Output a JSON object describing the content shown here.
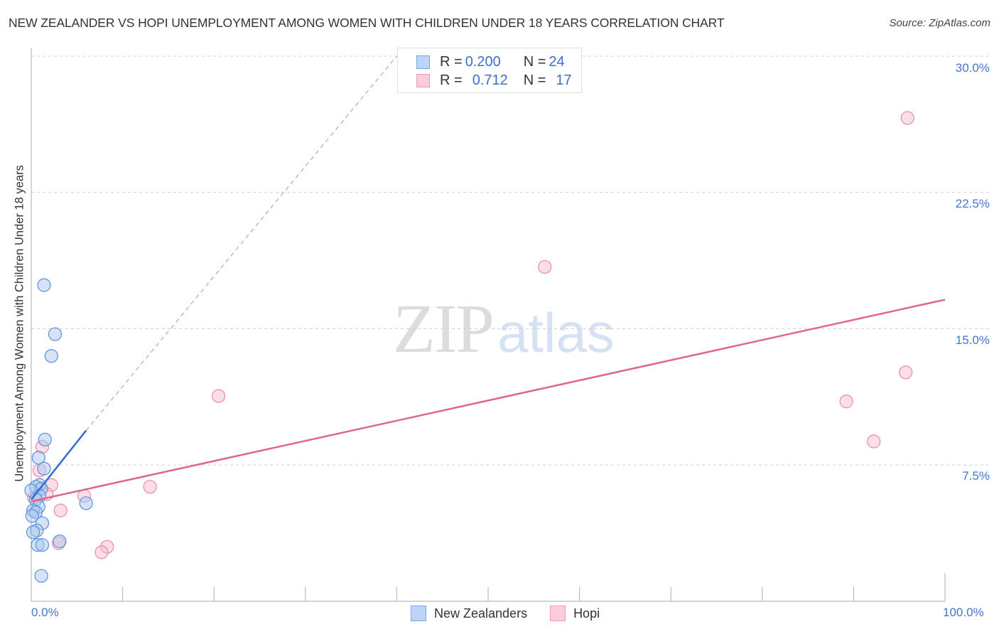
{
  "header": {
    "title": "NEW ZEALANDER VS HOPI UNEMPLOYMENT AMONG WOMEN WITH CHILDREN UNDER 18 YEARS CORRELATION CHART",
    "source": "Source: ZipAtlas.com"
  },
  "watermark": {
    "zip": "ZIP",
    "atlas": "atlas"
  },
  "axes": {
    "ylabel": "Unemployment Among Women with Children Under 18 years",
    "yticks": [
      "30.0%",
      "22.5%",
      "15.0%",
      "7.5%"
    ],
    "xticks": [
      "0.0%",
      "100.0%"
    ]
  },
  "stats_legend": {
    "rows": [
      {
        "r_label": "R = ",
        "r_value": "0.200",
        "n_label": "N = ",
        "n_value": "24",
        "color": "#a9c8f0"
      },
      {
        "r_label": "R = ",
        "r_value": "0.712",
        "n_label": "N = ",
        "n_value": "17",
        "color": "#f7b9cb"
      }
    ]
  },
  "series_legend": [
    {
      "label": "New Zealanders",
      "color": "#a9c8f0"
    },
    {
      "label": "Hopi",
      "color": "#f7b9cb"
    }
  ],
  "colors": {
    "blue_fill": "#a9c8f0",
    "blue_stroke": "#5b8fdb",
    "blue_line": "#2f6fcf",
    "pink_fill": "#f7bdcf",
    "pink_stroke": "#e98aa8",
    "pink_line": "#e06590",
    "grid": "#d0d0d0",
    "axis": "#bbbbbb",
    "tick_label": "#4477cc"
  },
  "chart_data": {
    "type": "scatter",
    "title": "NEW ZEALANDER VS HOPI UNEMPLOYMENT AMONG WOMEN WITH CHILDREN UNDER 18 YEARS CORRELATION CHART",
    "xlabel": "",
    "ylabel": "Unemployment Among Women with Children Under 18 years",
    "xlim": [
      0,
      100
    ],
    "ylim": [
      0,
      30
    ],
    "yticks": [
      7.5,
      15.0,
      22.5,
      30.0
    ],
    "xtick_labels": [
      "0.0%",
      "100.0%"
    ],
    "grid": true,
    "legend_position": "bottom",
    "series": [
      {
        "name": "New Zealanders",
        "r": 0.2,
        "n": 24,
        "points": [
          [
            1.4,
            17.4
          ],
          [
            2.6,
            14.7
          ],
          [
            2.2,
            13.5
          ],
          [
            1.5,
            8.9
          ],
          [
            0.8,
            7.9
          ],
          [
            1.4,
            7.3
          ],
          [
            0.9,
            6.4
          ],
          [
            0.5,
            6.3
          ],
          [
            1.1,
            6.2
          ],
          [
            0.0,
            6.1
          ],
          [
            0.9,
            5.8
          ],
          [
            0.5,
            5.6
          ],
          [
            0.8,
            5.2
          ],
          [
            0.2,
            5.0
          ],
          [
            0.5,
            4.9
          ],
          [
            0.1,
            4.7
          ],
          [
            1.2,
            4.3
          ],
          [
            0.6,
            3.9
          ],
          [
            0.2,
            3.8
          ],
          [
            0.7,
            3.1
          ],
          [
            1.2,
            3.1
          ],
          [
            3.1,
            3.3
          ],
          [
            6.0,
            5.4
          ],
          [
            1.1,
            1.4
          ]
        ],
        "trend": {
          "x0": 0,
          "y0": 5.6,
          "x1": 6.0,
          "y1": 9.4,
          "dashed_extension_to": [
            40,
            30
          ]
        }
      },
      {
        "name": "Hopi",
        "r": 0.712,
        "n": 17,
        "points": [
          [
            95.9,
            26.6
          ],
          [
            56.2,
            18.4
          ],
          [
            20.5,
            11.3
          ],
          [
            95.7,
            12.6
          ],
          [
            89.2,
            11.0
          ],
          [
            92.2,
            8.8
          ],
          [
            13.0,
            6.3
          ],
          [
            1.2,
            8.5
          ],
          [
            0.9,
            7.2
          ],
          [
            2.2,
            6.4
          ],
          [
            1.7,
            5.9
          ],
          [
            0.3,
            5.7
          ],
          [
            5.8,
            5.8
          ],
          [
            3.2,
            5.0
          ],
          [
            3.0,
            3.2
          ],
          [
            8.3,
            3.0
          ],
          [
            7.7,
            2.7
          ]
        ],
        "trend": {
          "x0": 0,
          "y0": 5.5,
          "x1": 100,
          "y1": 16.6
        }
      }
    ]
  }
}
